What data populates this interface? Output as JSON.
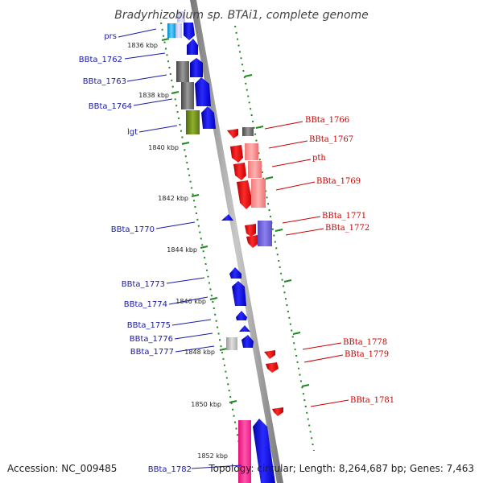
{
  "title": "Bradyrhizobium sp. BTAi1, complete genome",
  "footer": {
    "accession": "Accession: NC_009485",
    "summary": "Topology: circular; Length: 8,264,687 bp; Genes: 7,463"
  },
  "axis_ticks": [
    "1836 kbp",
    "1838 kbp",
    "1840 kbp",
    "1842 kbp",
    "1844 kbp",
    "1846 kbp",
    "1848 kbp",
    "1850 kbp",
    "1852 kbp"
  ],
  "forward_genes": [
    "prs",
    "BBta_1762",
    "BBta_1763",
    "BBta_1764",
    "lgt",
    "BBta_1770",
    "BBta_1773",
    "BBta_1774",
    "BBta_1775",
    "BBta_1776",
    "BBta_1777",
    "BBta_1782"
  ],
  "reverse_genes": [
    "BBta_1766",
    "BBta_1767",
    "pth",
    "BBta_1769",
    "BBta_1771",
    "BBta_1772",
    "BBta_1778",
    "BBta_1779",
    "BBta_1781"
  ],
  "colors": {
    "forward": "#0000ee",
    "reverse": "#ee0000",
    "backbone": "#999999",
    "tick": "#228b22"
  }
}
